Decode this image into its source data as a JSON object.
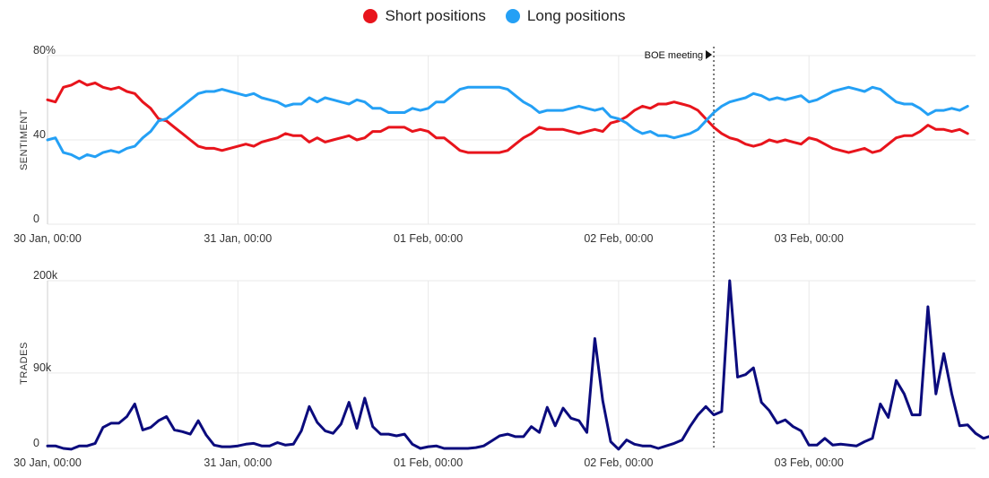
{
  "legend": {
    "items": [
      {
        "label": "Short positions",
        "color": "#e8141c"
      },
      {
        "label": "Long positions",
        "color": "#24a0f5"
      }
    ]
  },
  "chart_data": [
    {
      "type": "line",
      "ylabel": "SENTIMENT",
      "ylim": [
        0,
        80
      ],
      "yticks": [
        0,
        40,
        80
      ],
      "ytick_labels": [
        "0",
        "40",
        "80%"
      ],
      "xlim": [
        0,
        117
      ],
      "xtick_positions": [
        0,
        24,
        48,
        72,
        96
      ],
      "xtick_labels": [
        "30 Jan, 00:00",
        "31 Jan, 00:00",
        "01 Feb, 00:00",
        "02 Feb, 00:00",
        "03 Feb, 00:00"
      ],
      "grid": true,
      "annotation": {
        "label": "BOE meeting",
        "x": 84
      },
      "series": [
        {
          "name": "Short positions",
          "color": "#e8141c",
          "values": [
            59,
            58,
            65,
            66,
            68,
            66,
            67,
            65,
            64,
            65,
            63,
            62,
            58,
            55,
            50,
            49,
            46,
            43,
            40,
            37,
            36,
            36,
            35,
            36,
            37,
            38,
            37,
            39,
            40,
            41,
            43,
            42,
            42,
            39,
            41,
            39,
            40,
            41,
            42,
            40,
            41,
            44,
            44,
            46,
            46,
            46,
            44,
            45,
            44,
            41,
            41,
            38,
            35,
            34,
            34,
            34,
            34,
            34,
            35,
            38,
            41,
            43,
            46,
            45,
            45,
            45,
            44,
            43,
            44,
            45,
            44,
            48,
            49,
            51,
            54,
            56,
            55,
            57,
            57,
            58,
            57,
            56,
            54,
            50,
            46,
            43,
            41,
            40,
            38,
            37,
            38,
            40,
            39,
            40,
            39,
            38,
            41,
            40,
            38,
            36,
            35,
            34,
            35,
            36,
            34,
            35,
            38,
            41,
            42,
            42,
            44,
            47,
            45,
            45,
            44,
            45,
            43
          ]
        },
        {
          "name": "Long positions",
          "color": "#24a0f5",
          "values": [
            40,
            41,
            34,
            33,
            31,
            33,
            32,
            34,
            35,
            34,
            36,
            37,
            41,
            44,
            49,
            50,
            53,
            56,
            59,
            62,
            63,
            63,
            64,
            63,
            62,
            61,
            62,
            60,
            59,
            58,
            56,
            57,
            57,
            60,
            58,
            60,
            59,
            58,
            57,
            59,
            58,
            55,
            55,
            53,
            53,
            53,
            55,
            54,
            55,
            58,
            58,
            61,
            64,
            65,
            65,
            65,
            65,
            65,
            64,
            61,
            58,
            56,
            53,
            54,
            54,
            54,
            55,
            56,
            55,
            54,
            55,
            51,
            50,
            48,
            45,
            43,
            44,
            42,
            42,
            41,
            42,
            43,
            45,
            49,
            53,
            56,
            58,
            59,
            60,
            62,
            61,
            59,
            60,
            59,
            60,
            61,
            58,
            59,
            61,
            63,
            64,
            65,
            64,
            63,
            65,
            64,
            61,
            58,
            57,
            57,
            55,
            52,
            54,
            54,
            55,
            54,
            56
          ]
        }
      ]
    },
    {
      "type": "line",
      "ylabel": "TRADES",
      "ylim": [
        0,
        200000
      ],
      "yticks": [
        0,
        90000,
        200000
      ],
      "ytick_labels": [
        "0",
        "90k",
        "200k"
      ],
      "xlim": [
        0,
        117
      ],
      "xtick_positions": [
        0,
        24,
        48,
        72,
        96
      ],
      "xtick_labels": [
        "30 Jan, 00:00",
        "31 Jan, 00:00",
        "01 Feb, 00:00",
        "02 Feb, 00:00",
        "03 Feb, 00:00"
      ],
      "grid": true,
      "series": [
        {
          "name": "Trades",
          "color": "#0b0b7d",
          "values": [
            3000,
            3000,
            0,
            -1000,
            3000,
            3000,
            6000,
            25000,
            30000,
            30000,
            38000,
            53000,
            22000,
            25000,
            33000,
            38000,
            22000,
            20000,
            17000,
            33000,
            16000,
            4000,
            2000,
            2000,
            3000,
            5000,
            6000,
            3000,
            3000,
            7000,
            4000,
            5000,
            21000,
            50000,
            31000,
            21000,
            18000,
            29000,
            55000,
            24000,
            60000,
            26000,
            17000,
            17000,
            15000,
            17000,
            5000,
            0,
            2000,
            3000,
            0,
            0,
            0,
            0,
            1000,
            3000,
            9000,
            15000,
            17000,
            14000,
            14000,
            26000,
            19000,
            49000,
            27000,
            48000,
            36000,
            33000,
            19000,
            131000,
            57000,
            8000,
            -1000,
            10000,
            5000,
            3000,
            3000,
            0,
            3000,
            6000,
            10000,
            26000,
            40000,
            50000,
            40000,
            44000,
            200000,
            85000,
            88000,
            96000,
            55000,
            45000,
            30000,
            34000,
            26000,
            21000,
            4000,
            4000,
            12000,
            4000,
            5000,
            4000,
            3000,
            8000,
            12000,
            53000,
            37000,
            81000,
            65000,
            40000,
            40000,
            169000,
            65000,
            113000,
            65000,
            27000,
            28000,
            18000,
            12000,
            15000
          ]
        }
      ]
    }
  ]
}
